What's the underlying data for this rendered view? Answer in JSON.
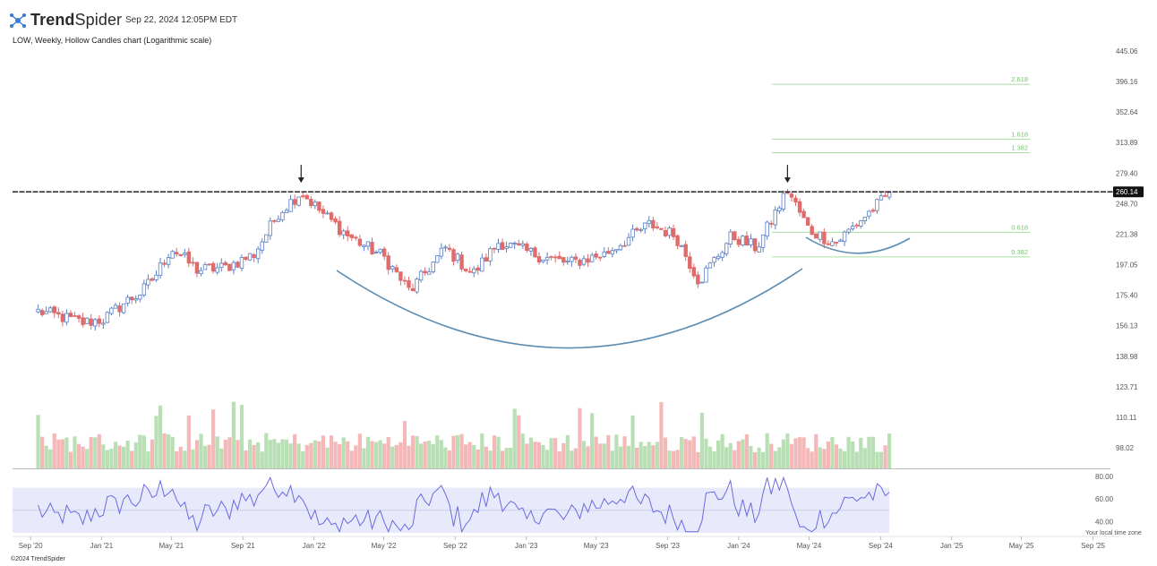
{
  "header": {
    "brand_bold": "Trend",
    "brand_light": "Spider",
    "timestamp": "Sep 22, 2024 12:05PM EDT",
    "subtitle": "LOW, Weekly, Hollow Candles chart (Logarithmic scale)"
  },
  "footer": {
    "copyright": "©2024 TrendSpider",
    "timezone_note": "Your local time zone"
  },
  "colors": {
    "up": "#5a7fc2",
    "down": "#e06b6b",
    "vol_up": "#b9dfb5",
    "vol_down": "#f5b8b8",
    "fib": "#a8dda0",
    "fib_text": "#7cc274",
    "curve": "#5b8db3",
    "rsi_line": "#6a6ae0",
    "rsi_band": "#e8eafb",
    "resistance": "#111111"
  },
  "chart_data": {
    "type": "candlestick",
    "symbol": "LOW",
    "interval": "Weekly",
    "scale": "log",
    "price_axis_ticks": [
      "445.06",
      "396.16",
      "352.64",
      "313.89",
      "279.40",
      "248.70",
      "221.38",
      "197.05",
      "175.40",
      "156.13",
      "138.98",
      "123.71",
      "110.11",
      "98.02"
    ],
    "ylim": [
      98.02,
      445.06
    ],
    "time_axis_ticks": [
      "Sep '20",
      "Jan '21",
      "May '21",
      "Sep '21",
      "Jan '22",
      "May '22",
      "Sep '22",
      "Jan '23",
      "May '23",
      "Sep '23",
      "Jan '24",
      "May '24",
      "Sep '24",
      "Jan '25",
      "May '25",
      "Sep '25"
    ],
    "last_price_label": "260.14",
    "resistance_level": 260.14,
    "anchor_points": [
      {
        "d": "2020-09-14",
        "p": 165
      },
      {
        "d": "2020-12-01",
        "p": 158
      },
      {
        "d": "2021-01-04",
        "p": 160
      },
      {
        "d": "2021-02-15",
        "p": 172
      },
      {
        "d": "2021-03-10",
        "p": 177
      },
      {
        "d": "2021-04-05",
        "p": 190
      },
      {
        "d": "2021-05-01",
        "p": 210
      },
      {
        "d": "2021-06-15",
        "p": 193
      },
      {
        "d": "2021-08-02",
        "p": 195
      },
      {
        "d": "2021-09-20",
        "p": 205
      },
      {
        "d": "2021-11-01",
        "p": 240
      },
      {
        "d": "2021-12-10",
        "p": 260
      },
      {
        "d": "2022-01-15",
        "p": 240
      },
      {
        "d": "2022-03-01",
        "p": 220
      },
      {
        "d": "2022-05-01",
        "p": 203
      },
      {
        "d": "2022-06-15",
        "p": 178
      },
      {
        "d": "2022-08-15",
        "p": 210
      },
      {
        "d": "2022-10-01",
        "p": 190
      },
      {
        "d": "2022-11-15",
        "p": 215
      },
      {
        "d": "2023-01-15",
        "p": 205
      },
      {
        "d": "2023-03-15",
        "p": 198
      },
      {
        "d": "2023-05-15",
        "p": 205
      },
      {
        "d": "2023-08-01",
        "p": 230
      },
      {
        "d": "2023-09-15",
        "p": 220
      },
      {
        "d": "2023-10-25",
        "p": 185
      },
      {
        "d": "2023-12-20",
        "p": 220
      },
      {
        "d": "2024-02-01",
        "p": 210
      },
      {
        "d": "2024-03-25",
        "p": 262
      },
      {
        "d": "2024-05-01",
        "p": 225
      },
      {
        "d": "2024-06-15",
        "p": 214
      },
      {
        "d": "2024-09-20",
        "p": 260
      }
    ],
    "fibonacci_levels": [
      {
        "label": "2.618",
        "price": 392
      },
      {
        "label": "1.618",
        "price": 318
      },
      {
        "label": "1.382",
        "price": 302
      },
      {
        "label": "0.618",
        "price": 223
      },
      {
        "label": "0.382",
        "price": 203
      }
    ],
    "peak_markers": [
      {
        "d": "2021-12-10",
        "p": 262
      },
      {
        "d": "2024-03-25",
        "p": 262
      }
    ],
    "rsi_axis_ticks": [
      "80.00",
      "60.00",
      "40.00"
    ],
    "rsi_band": [
      30,
      70
    ],
    "rsi_ylim": [
      30,
      80
    ],
    "rsi_last": 66
  }
}
